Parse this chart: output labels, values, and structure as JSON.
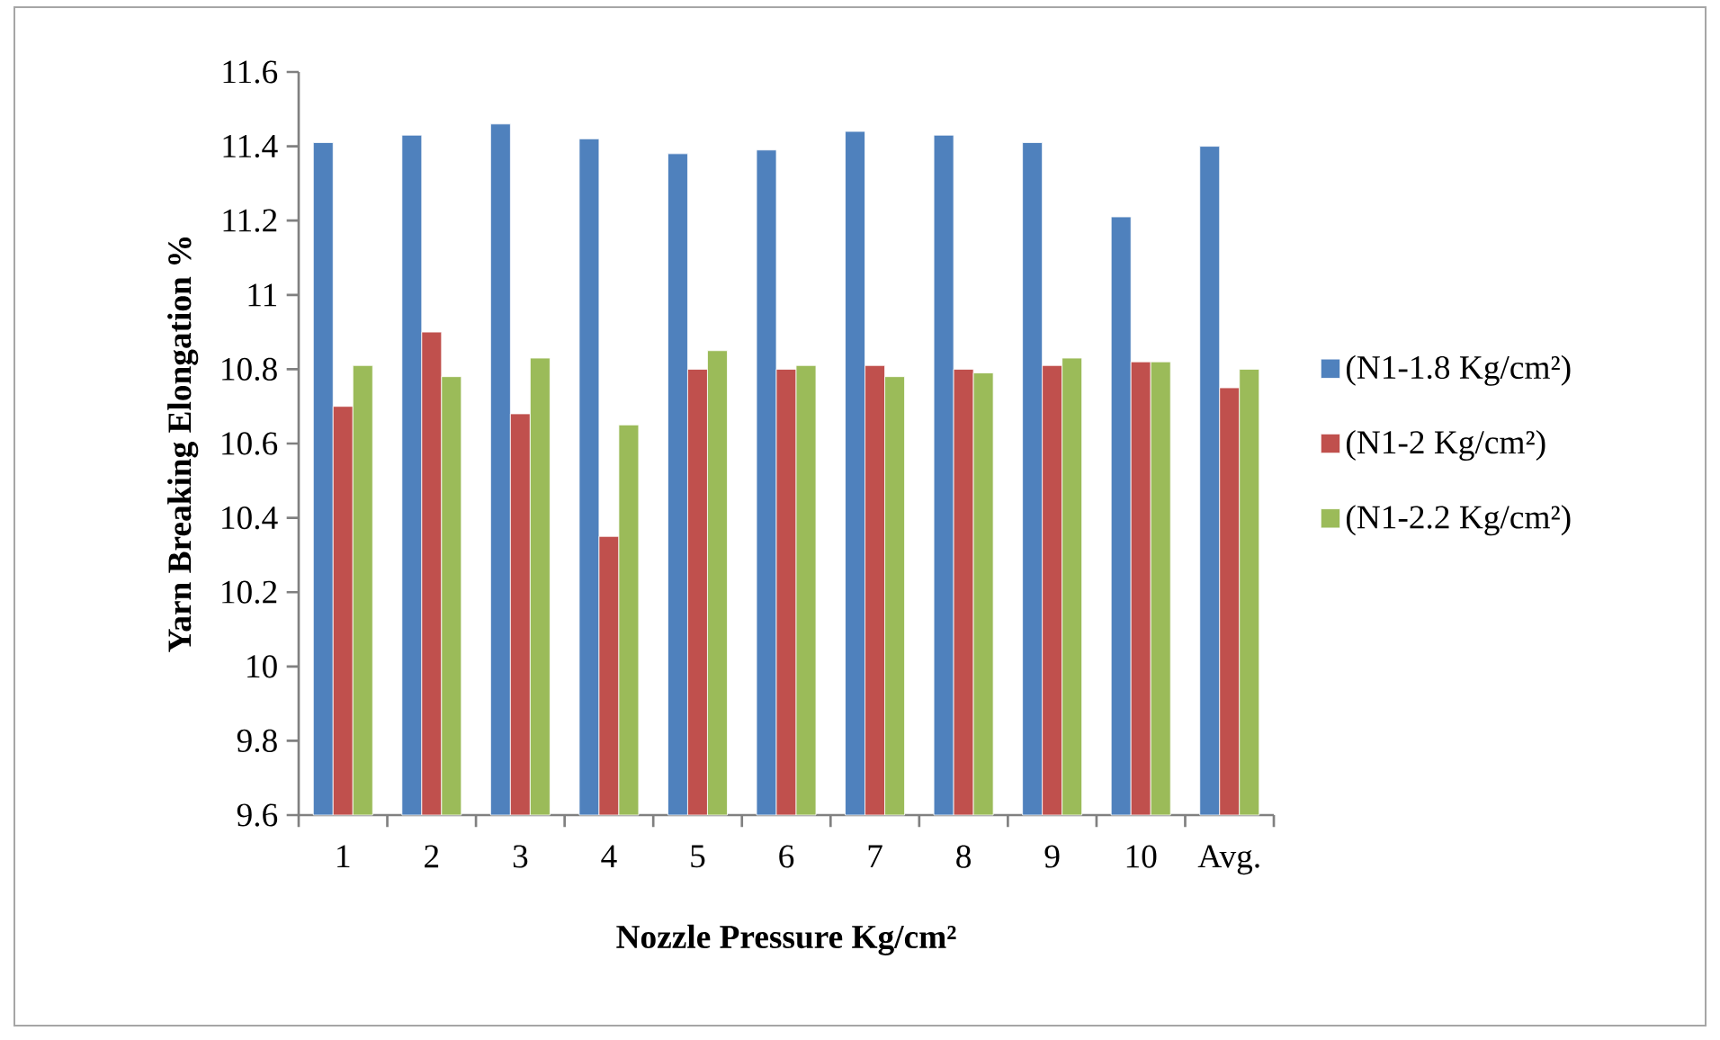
{
  "chart_data": {
    "type": "bar",
    "xlabel": "Nozzle Pressure Kg/cm²",
    "ylabel": "Yarn Breaking Elongation %",
    "categories": [
      "1",
      "2",
      "3",
      "4",
      "5",
      "6",
      "7",
      "8",
      "9",
      "10",
      "Avg."
    ],
    "series": [
      {
        "name": "(N1-1.8 Kg/cm²)",
        "color": "#4f81bd",
        "values": [
          11.41,
          11.43,
          11.46,
          11.42,
          11.38,
          11.39,
          11.44,
          11.43,
          11.41,
          11.21,
          11.4
        ]
      },
      {
        "name": "(N1-2 Kg/cm²)",
        "color": "#c0504d",
        "values": [
          10.7,
          10.9,
          10.68,
          10.35,
          10.8,
          10.8,
          10.81,
          10.8,
          10.81,
          10.82,
          10.75
        ]
      },
      {
        "name": "(N1-2.2 Kg/cm²)",
        "color": "#9bbb59",
        "values": [
          10.81,
          10.78,
          10.83,
          10.65,
          10.85,
          10.81,
          10.78,
          10.79,
          10.83,
          10.82,
          10.8
        ]
      }
    ],
    "ylim": [
      9.6,
      11.6
    ],
    "yticks": [
      9.6,
      9.8,
      {
        "value": 10,
        "label": "10"
      },
      10.2,
      10.4,
      10.6,
      10.8,
      {
        "value": 11,
        "label": "11"
      },
      11.2,
      11.4,
      11.6
    ],
    "grid": false,
    "legend": "right"
  }
}
